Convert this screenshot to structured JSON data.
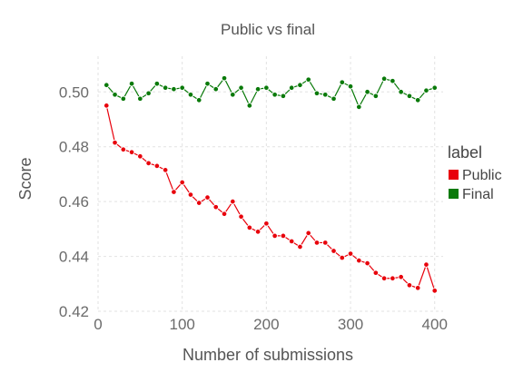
{
  "chart_data": {
    "type": "line",
    "title": "Public vs final",
    "xlabel": "Number of submissions",
    "ylabel": "Score",
    "xlim": [
      0,
      410
    ],
    "ylim": [
      0.42,
      0.513
    ],
    "xticks": [
      0,
      100,
      200,
      300,
      400
    ],
    "yticks": [
      0.42,
      0.44,
      0.46,
      0.48,
      0.5
    ],
    "xtick_labels": [
      "0",
      "100",
      "200",
      "300",
      "400"
    ],
    "ytick_labels": [
      "0.42",
      "0.44",
      "0.46",
      "0.48",
      "0.50"
    ],
    "grid": true,
    "legend": {
      "title": "label",
      "position": "right"
    },
    "x": [
      10,
      20,
      30,
      40,
      50,
      60,
      70,
      80,
      90,
      100,
      110,
      120,
      130,
      140,
      150,
      160,
      170,
      180,
      190,
      200,
      210,
      220,
      230,
      240,
      250,
      260,
      270,
      280,
      290,
      300,
      310,
      320,
      330,
      340,
      350,
      360,
      370,
      380,
      390,
      400
    ],
    "series": [
      {
        "name": "Public",
        "color": "#e8000b",
        "values": [
          0.495,
          0.4815,
          0.479,
          0.478,
          0.4765,
          0.474,
          0.473,
          0.4715,
          0.4635,
          0.467,
          0.4625,
          0.4595,
          0.4615,
          0.458,
          0.4555,
          0.46,
          0.4545,
          0.4505,
          0.449,
          0.452,
          0.4475,
          0.4475,
          0.4455,
          0.4435,
          0.4485,
          0.445,
          0.445,
          0.442,
          0.4395,
          0.441,
          0.4385,
          0.4375,
          0.434,
          0.432,
          0.432,
          0.4325,
          0.4295,
          0.4285,
          0.437,
          0.4275
        ]
      },
      {
        "name": "Final",
        "color": "#0a7a0a",
        "values": [
          0.5025,
          0.499,
          0.4975,
          0.503,
          0.4975,
          0.4995,
          0.503,
          0.5015,
          0.501,
          0.5015,
          0.499,
          0.497,
          0.503,
          0.501,
          0.505,
          0.499,
          0.5015,
          0.495,
          0.501,
          0.5015,
          0.499,
          0.4985,
          0.5015,
          0.5025,
          0.5045,
          0.4995,
          0.499,
          0.4975,
          0.5035,
          0.502,
          0.4945,
          0.5,
          0.4985,
          0.5048,
          0.504,
          0.5,
          0.4985,
          0.497,
          0.5005,
          0.5015
        ]
      }
    ]
  }
}
